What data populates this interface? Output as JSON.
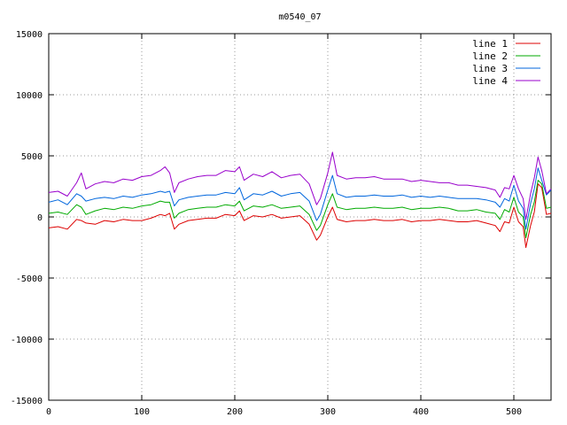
{
  "chart_data": {
    "type": "line",
    "title": "m0540_07",
    "xlabel": "",
    "ylabel": "",
    "xlim": [
      0,
      540
    ],
    "ylim": [
      -15000,
      15000
    ],
    "x_ticks": [
      0,
      100,
      200,
      300,
      400,
      500
    ],
    "y_ticks": [
      -15000,
      -10000,
      -5000,
      0,
      5000,
      10000,
      15000
    ],
    "grid": true,
    "legend_position": "top-right",
    "x": [
      0,
      10,
      20,
      30,
      35,
      40,
      50,
      60,
      70,
      80,
      90,
      100,
      110,
      120,
      125,
      130,
      135,
      140,
      150,
      160,
      170,
      180,
      190,
      200,
      205,
      210,
      220,
      230,
      240,
      250,
      260,
      270,
      280,
      288,
      292,
      300,
      305,
      310,
      320,
      330,
      340,
      350,
      360,
      370,
      380,
      390,
      400,
      410,
      420,
      430,
      440,
      450,
      460,
      470,
      480,
      485,
      490,
      495,
      500,
      505,
      510,
      513,
      518,
      522,
      526,
      530,
      535,
      540
    ],
    "series": [
      {
        "name": "line 1",
        "color": "#dd0000",
        "values": [
          -900,
          -800,
          -1000,
          -200,
          -300,
          -500,
          -600,
          -300,
          -400,
          -200,
          -300,
          -300,
          -100,
          200,
          100,
          300,
          -1000,
          -600,
          -300,
          -200,
          -100,
          -100,
          200,
          100,
          500,
          -300,
          100,
          0,
          200,
          -100,
          0,
          100,
          -600,
          -1900,
          -1500,
          0,
          800,
          -200,
          -400,
          -300,
          -300,
          -200,
          -300,
          -300,
          -200,
          -400,
          -300,
          -300,
          -200,
          -300,
          -400,
          -400,
          -300,
          -500,
          -700,
          -1200,
          -400,
          -500,
          800,
          -400,
          -800,
          -2500,
          -700,
          400,
          2700,
          2400,
          200,
          300
        ]
      },
      {
        "name": "line 2",
        "color": "#00aa00",
        "values": [
          300,
          400,
          200,
          1000,
          800,
          200,
          500,
          700,
          600,
          800,
          700,
          900,
          1000,
          1300,
          1200,
          1200,
          -100,
          300,
          600,
          700,
          800,
          800,
          1000,
          900,
          1300,
          500,
          900,
          800,
          1000,
          700,
          800,
          900,
          200,
          -1100,
          -700,
          1000,
          1900,
          800,
          600,
          700,
          700,
          800,
          700,
          700,
          800,
          600,
          700,
          700,
          800,
          700,
          500,
          500,
          600,
          400,
          300,
          -200,
          600,
          400,
          1600,
          400,
          0,
          -1700,
          200,
          1200,
          3000,
          2700,
          700,
          800
        ]
      },
      {
        "name": "line 3",
        "color": "#0066dd",
        "values": [
          1200,
          1400,
          1000,
          1900,
          1700,
          1300,
          1500,
          1600,
          1500,
          1700,
          1600,
          1800,
          1900,
          2100,
          2000,
          2100,
          900,
          1400,
          1600,
          1700,
          1800,
          1800,
          2000,
          1900,
          2400,
          1400,
          1900,
          1800,
          2100,
          1700,
          1900,
          2000,
          1300,
          -300,
          200,
          2200,
          3400,
          1900,
          1600,
          1700,
          1700,
          1800,
          1700,
          1700,
          1800,
          1600,
          1700,
          1600,
          1700,
          1600,
          1500,
          1500,
          1500,
          1400,
          1200,
          800,
          1500,
          1300,
          2600,
          1300,
          700,
          -1000,
          1100,
          2300,
          4000,
          3000,
          1800,
          2200
        ]
      },
      {
        "name": "line 4",
        "color": "#9900cc",
        "values": [
          2000,
          2100,
          1700,
          2800,
          3600,
          2300,
          2700,
          2900,
          2800,
          3100,
          3000,
          3300,
          3400,
          3800,
          4100,
          3600,
          2000,
          2800,
          3100,
          3300,
          3400,
          3400,
          3800,
          3700,
          4100,
          3000,
          3500,
          3300,
          3700,
          3200,
          3400,
          3500,
          2700,
          1000,
          1500,
          3600,
          5300,
          3400,
          3100,
          3200,
          3200,
          3300,
          3100,
          3100,
          3100,
          2900,
          3000,
          2900,
          2800,
          2800,
          2600,
          2600,
          2500,
          2400,
          2200,
          1600,
          2400,
          2300,
          3400,
          2300,
          1500,
          -200,
          1900,
          3200,
          4900,
          3800,
          1900,
          2300
        ]
      }
    ]
  }
}
